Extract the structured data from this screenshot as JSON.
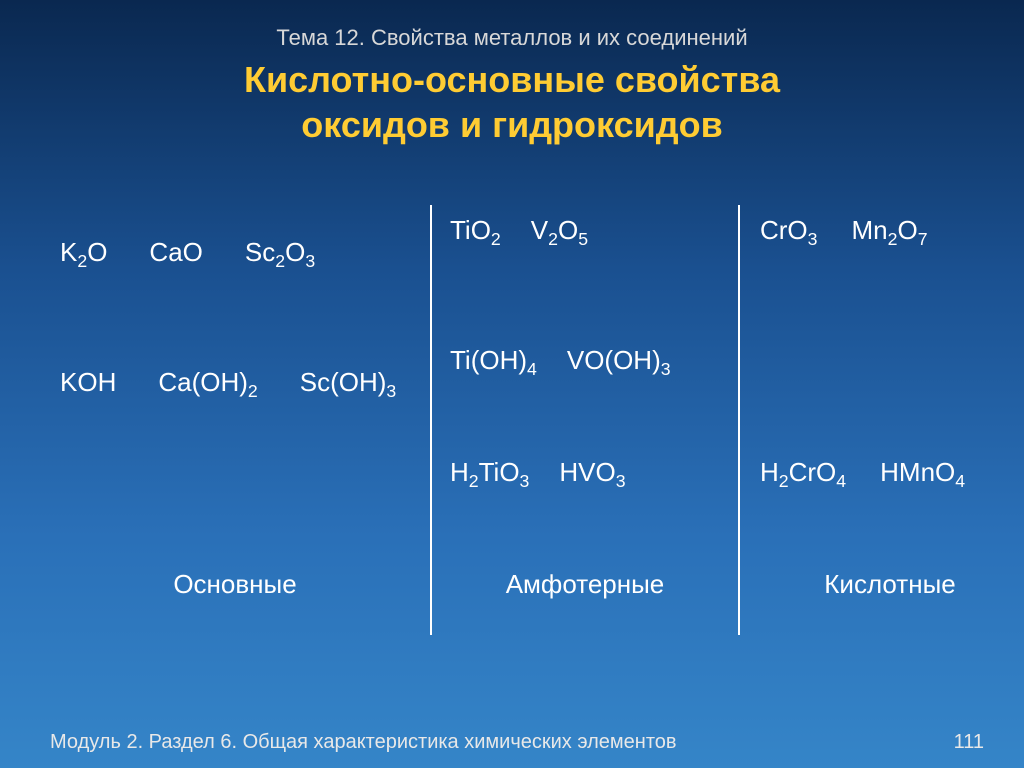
{
  "topic_line": "Тема 12. Свойства металлов и их соединений",
  "title_line1": "Кислотно-основные свойства",
  "title_line2": "оксидов и гидроксидов",
  "style": {
    "background_gradient": [
      "#0a2850",
      "#1a5090",
      "#2a70b8",
      "#3585c8"
    ],
    "title_color": "#ffcc33",
    "text_color": "#ffffff",
    "topic_color": "#d8d8d8",
    "divider_color": "#ffffff",
    "body_fontsize": 26,
    "title_fontsize": 36,
    "topic_fontsize": 22,
    "footer_fontsize": 20
  },
  "columns": {
    "basic": {
      "label": "Основные",
      "oxides": [
        "K_2O",
        "CaO",
        "Sc_2O_3"
      ],
      "hydroxides": [
        "KOH",
        "Ca(OH)_2",
        "Sc(OH)_3"
      ],
      "acids": []
    },
    "amphoteric": {
      "label": "Амфотерные",
      "oxides": [
        "TiO_2",
        "V_2O_5"
      ],
      "hydroxides": [
        "Ti(OH)_4",
        "VO(OH)_3"
      ],
      "acids": [
        "H_2TiO_3",
        "HVO_3"
      ]
    },
    "acidic": {
      "label": "Кислотные",
      "oxides": [
        "CrO_3",
        "Mn_2O_7"
      ],
      "hydroxides": [],
      "acids": [
        "H_2CrO_4",
        "HMnO_4"
      ]
    }
  },
  "footer": {
    "left": "Модуль 2. Раздел 6. Общая характеристика химических элементов",
    "page": "111"
  }
}
